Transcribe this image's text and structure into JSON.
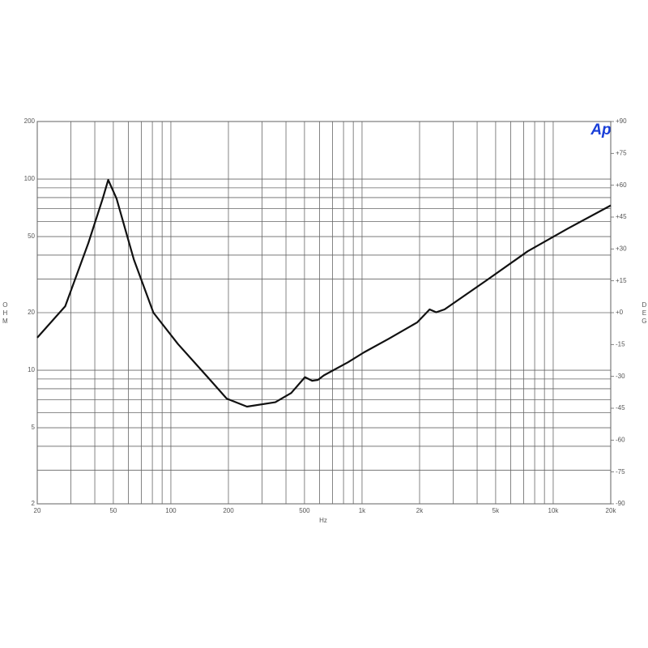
{
  "chart_data": {
    "type": "line",
    "xscale": "log",
    "yscale": "log",
    "x_label": "Hz",
    "y_label": "OHM",
    "y2_label": "DEG",
    "logo": "Ap",
    "x": [
      20,
      28,
      37,
      44,
      47,
      52,
      64,
      81,
      109,
      162,
      196,
      250,
      352,
      426,
      503,
      549,
      588,
      632,
      843,
      1024,
      1378,
      1947,
      2257,
      2443,
      2700,
      4515,
      7360,
      11950,
      20000
    ],
    "series": [
      {
        "color": "#111111",
        "values": [
          14.8,
          21.6,
          46.3,
          79,
          99,
          79,
          38,
          20,
          13.7,
          8.8,
          7.1,
          6.45,
          6.8,
          7.6,
          9.2,
          8.8,
          8.9,
          9.4,
          11.0,
          12.4,
          14.6,
          17.8,
          20.8,
          20.1,
          20.8,
          29.7,
          41.9,
          55.1,
          72.8
        ]
      }
    ],
    "xlim": [
      20,
      20000
    ],
    "xticks": [
      20,
      50,
      100,
      200,
      500,
      {
        "value": 1000,
        "label": "1k"
      },
      {
        "value": 2000,
        "label": "2k"
      },
      {
        "value": 5000,
        "label": "5k"
      },
      {
        "value": 10000,
        "label": "10k"
      },
      {
        "value": 20000,
        "label": "20k"
      }
    ],
    "xminor": [
      30,
      40,
      60,
      70,
      80,
      90,
      300,
      400,
      600,
      700,
      800,
      900,
      3000,
      4000,
      6000,
      7000,
      8000,
      9000
    ],
    "ylim": [
      2,
      200
    ],
    "yticks": [
      2,
      5,
      10,
      20,
      50,
      100,
      200
    ],
    "yminor": [
      3,
      4,
      6,
      7,
      8,
      9,
      30,
      40,
      60,
      70,
      80,
      90
    ],
    "y2lim": [
      -90,
      90
    ],
    "y2ticks": [
      {
        "value": 90,
        "label": "+90"
      },
      {
        "value": 75,
        "label": "+75"
      },
      {
        "value": 60,
        "label": "+60"
      },
      {
        "value": 45,
        "label": "+45"
      },
      {
        "value": 30,
        "label": "+30"
      },
      {
        "value": 15,
        "label": "+15"
      },
      {
        "value": 0,
        "label": "+0"
      },
      -15,
      -30,
      -45,
      -60,
      -75,
      -90
    ],
    "grid": true
  }
}
